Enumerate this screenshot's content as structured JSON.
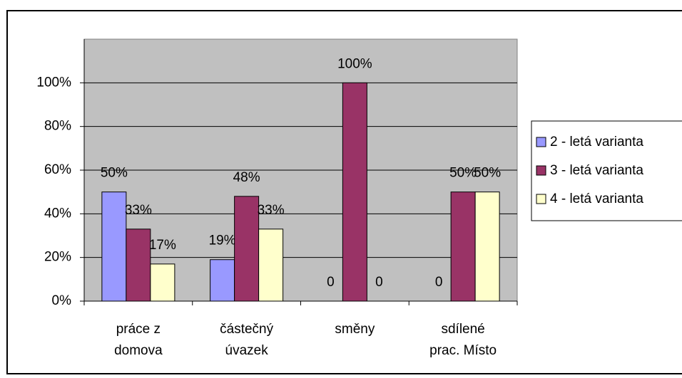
{
  "chart_data": {
    "type": "bar",
    "categories": [
      [
        "práce z",
        "domova"
      ],
      [
        "částečný",
        "úvazek"
      ],
      [
        "směny"
      ],
      [
        "sdílené",
        "prac. Místo"
      ]
    ],
    "series": [
      {
        "name": "2 - letá varianta",
        "color": "#9999ff",
        "values": [
          50,
          19,
          0,
          0
        ],
        "value_labels": [
          "50%",
          "19%",
          "0",
          "0"
        ]
      },
      {
        "name": "3 - letá varianta",
        "color": "#993366",
        "values": [
          33,
          48,
          100,
          50
        ],
        "value_labels": [
          "33%",
          "48%",
          "100%",
          "50%"
        ]
      },
      {
        "name": "4 - letá varianta",
        "color": "#ffffcc",
        "values": [
          17,
          33,
          0,
          50
        ],
        "value_labels": [
          "17%",
          "33%",
          "0",
          "50%"
        ]
      }
    ],
    "ylim": [
      0,
      120
    ],
    "yticks": [
      {
        "value": 0,
        "label": "0%"
      },
      {
        "value": 20,
        "label": "20%"
      },
      {
        "value": 40,
        "label": "40%"
      },
      {
        "value": 60,
        "label": "60%"
      },
      {
        "value": 80,
        "label": "80%"
      },
      {
        "value": 100,
        "label": "100%"
      }
    ],
    "grid": true,
    "legend": "right",
    "background": "#c0c0c0"
  }
}
